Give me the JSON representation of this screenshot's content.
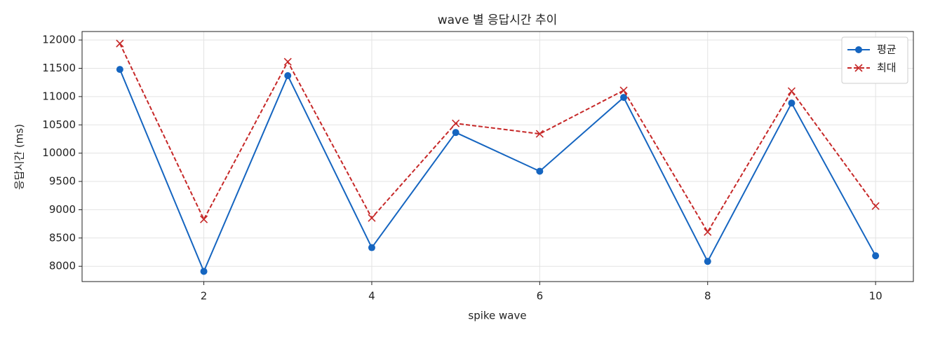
{
  "chart_data": {
    "type": "line",
    "title": "wave 별 응답시간 추이",
    "x_label": "spike wave",
    "y_label": "응답시간 (ms)",
    "x": [
      1,
      2,
      3,
      4,
      5,
      6,
      7,
      8,
      9,
      10
    ],
    "series": [
      {
        "name": "평균",
        "color": "#1565c0",
        "marker": "circle",
        "dash": "solid",
        "values": [
          11480,
          7910,
          11370,
          8330,
          10365,
          9680,
          10985,
          8087,
          10885,
          8186
        ]
      },
      {
        "name": "최대",
        "color": "#c62828",
        "marker": "x",
        "dash": "dashed",
        "values": [
          11938,
          8830,
          11616,
          8855,
          10526,
          10341,
          11109,
          8607,
          11096,
          9065
        ]
      }
    ],
    "xlim": [
      0.55,
      10.45
    ],
    "xticks": [
      2,
      4,
      6,
      8,
      10
    ],
    "ylim": [
      7730,
      12150
    ],
    "yticks": [
      8000,
      8500,
      9000,
      9500,
      10000,
      10500,
      11000,
      11500,
      12000
    ],
    "grid": true,
    "legend": "upper right"
  }
}
